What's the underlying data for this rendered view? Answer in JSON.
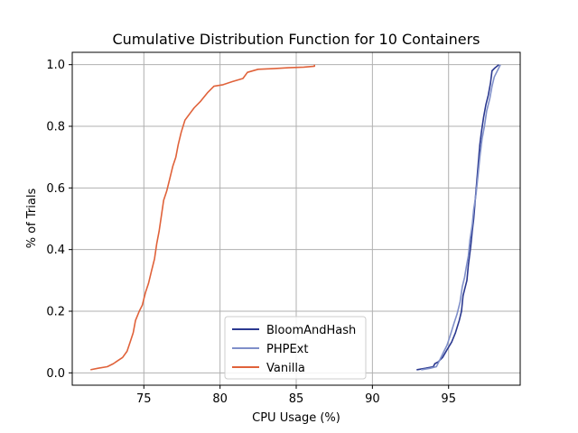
{
  "chart_data": {
    "type": "line",
    "title": "Cumulative Distribution Function for 10 Containers",
    "xlabel": "CPU Usage (%)",
    "ylabel": "% of Trials",
    "xlim": [
      70.3,
      99.7
    ],
    "ylim": [
      -0.04,
      1.04
    ],
    "xticks": [
      75,
      80,
      85,
      90,
      95
    ],
    "yticks": [
      0.0,
      0.2,
      0.4,
      0.6,
      0.8,
      1.0
    ],
    "xtick_labels": [
      "75",
      "80",
      "85",
      "90",
      "95"
    ],
    "ytick_labels": [
      "0.0",
      "0.2",
      "0.4",
      "0.6",
      "0.8",
      "1.0"
    ],
    "grid": true,
    "legend_position": "bottom-center",
    "series": [
      {
        "name": "BloomAndHash",
        "color": "#2b3990",
        "points": [
          [
            92.9,
            0.01
          ],
          [
            93.5,
            0.015
          ],
          [
            94.0,
            0.02
          ],
          [
            94.1,
            0.03
          ],
          [
            94.3,
            0.035
          ],
          [
            94.6,
            0.05
          ],
          [
            94.9,
            0.075
          ],
          [
            95.2,
            0.1
          ],
          [
            95.45,
            0.13
          ],
          [
            95.7,
            0.17
          ],
          [
            95.85,
            0.2
          ],
          [
            95.95,
            0.25
          ],
          [
            96.05,
            0.27
          ],
          [
            96.2,
            0.3
          ],
          [
            96.3,
            0.35
          ],
          [
            96.45,
            0.41
          ],
          [
            96.55,
            0.46
          ],
          [
            96.65,
            0.5
          ],
          [
            96.75,
            0.56
          ],
          [
            96.85,
            0.62
          ],
          [
            96.95,
            0.68
          ],
          [
            97.05,
            0.74
          ],
          [
            97.15,
            0.78
          ],
          [
            97.3,
            0.83
          ],
          [
            97.45,
            0.87
          ],
          [
            97.6,
            0.9
          ],
          [
            97.75,
            0.94
          ],
          [
            97.85,
            0.98
          ],
          [
            98.05,
            0.99
          ],
          [
            98.3,
            1.0
          ]
        ]
      },
      {
        "name": "PHPExt",
        "color": "#7f8fc9",
        "points": [
          [
            93.2,
            0.01
          ],
          [
            93.8,
            0.015
          ],
          [
            94.2,
            0.02
          ],
          [
            94.4,
            0.04
          ],
          [
            94.7,
            0.07
          ],
          [
            94.9,
            0.09
          ],
          [
            95.1,
            0.12
          ],
          [
            95.35,
            0.16
          ],
          [
            95.55,
            0.19
          ],
          [
            95.75,
            0.23
          ],
          [
            95.9,
            0.28
          ],
          [
            96.05,
            0.31
          ],
          [
            96.15,
            0.34
          ],
          [
            96.3,
            0.38
          ],
          [
            96.4,
            0.43
          ],
          [
            96.55,
            0.48
          ],
          [
            96.65,
            0.53
          ],
          [
            96.8,
            0.58
          ],
          [
            96.95,
            0.65
          ],
          [
            97.05,
            0.7
          ],
          [
            97.2,
            0.76
          ],
          [
            97.35,
            0.8
          ],
          [
            97.5,
            0.85
          ],
          [
            97.7,
            0.89
          ],
          [
            97.85,
            0.93
          ],
          [
            98.0,
            0.96
          ],
          [
            98.2,
            0.98
          ],
          [
            98.4,
            1.0
          ]
        ]
      },
      {
        "name": "Vanilla",
        "color": "#e0623a",
        "points": [
          [
            71.5,
            0.01
          ],
          [
            72.0,
            0.015
          ],
          [
            72.6,
            0.02
          ],
          [
            73.0,
            0.03
          ],
          [
            73.3,
            0.04
          ],
          [
            73.6,
            0.05
          ],
          [
            73.9,
            0.07
          ],
          [
            74.1,
            0.1
          ],
          [
            74.3,
            0.13
          ],
          [
            74.45,
            0.17
          ],
          [
            74.7,
            0.2
          ],
          [
            74.9,
            0.22
          ],
          [
            75.1,
            0.26
          ],
          [
            75.3,
            0.29
          ],
          [
            75.5,
            0.33
          ],
          [
            75.7,
            0.37
          ],
          [
            75.85,
            0.42
          ],
          [
            76.0,
            0.46
          ],
          [
            76.15,
            0.51
          ],
          [
            76.3,
            0.56
          ],
          [
            76.5,
            0.59
          ],
          [
            76.7,
            0.63
          ],
          [
            76.9,
            0.67
          ],
          [
            77.1,
            0.7
          ],
          [
            77.25,
            0.74
          ],
          [
            77.45,
            0.78
          ],
          [
            77.7,
            0.82
          ],
          [
            78.0,
            0.84
          ],
          [
            78.3,
            0.86
          ],
          [
            78.7,
            0.88
          ],
          [
            79.2,
            0.91
          ],
          [
            79.6,
            0.93
          ],
          [
            80.2,
            0.935
          ],
          [
            80.8,
            0.945
          ],
          [
            81.5,
            0.955
          ],
          [
            81.8,
            0.975
          ],
          [
            82.5,
            0.985
          ],
          [
            83.5,
            0.987
          ],
          [
            84.5,
            0.99
          ],
          [
            85.5,
            0.992
          ],
          [
            86.2,
            0.995
          ],
          [
            86.2,
            1.0
          ]
        ]
      }
    ]
  }
}
